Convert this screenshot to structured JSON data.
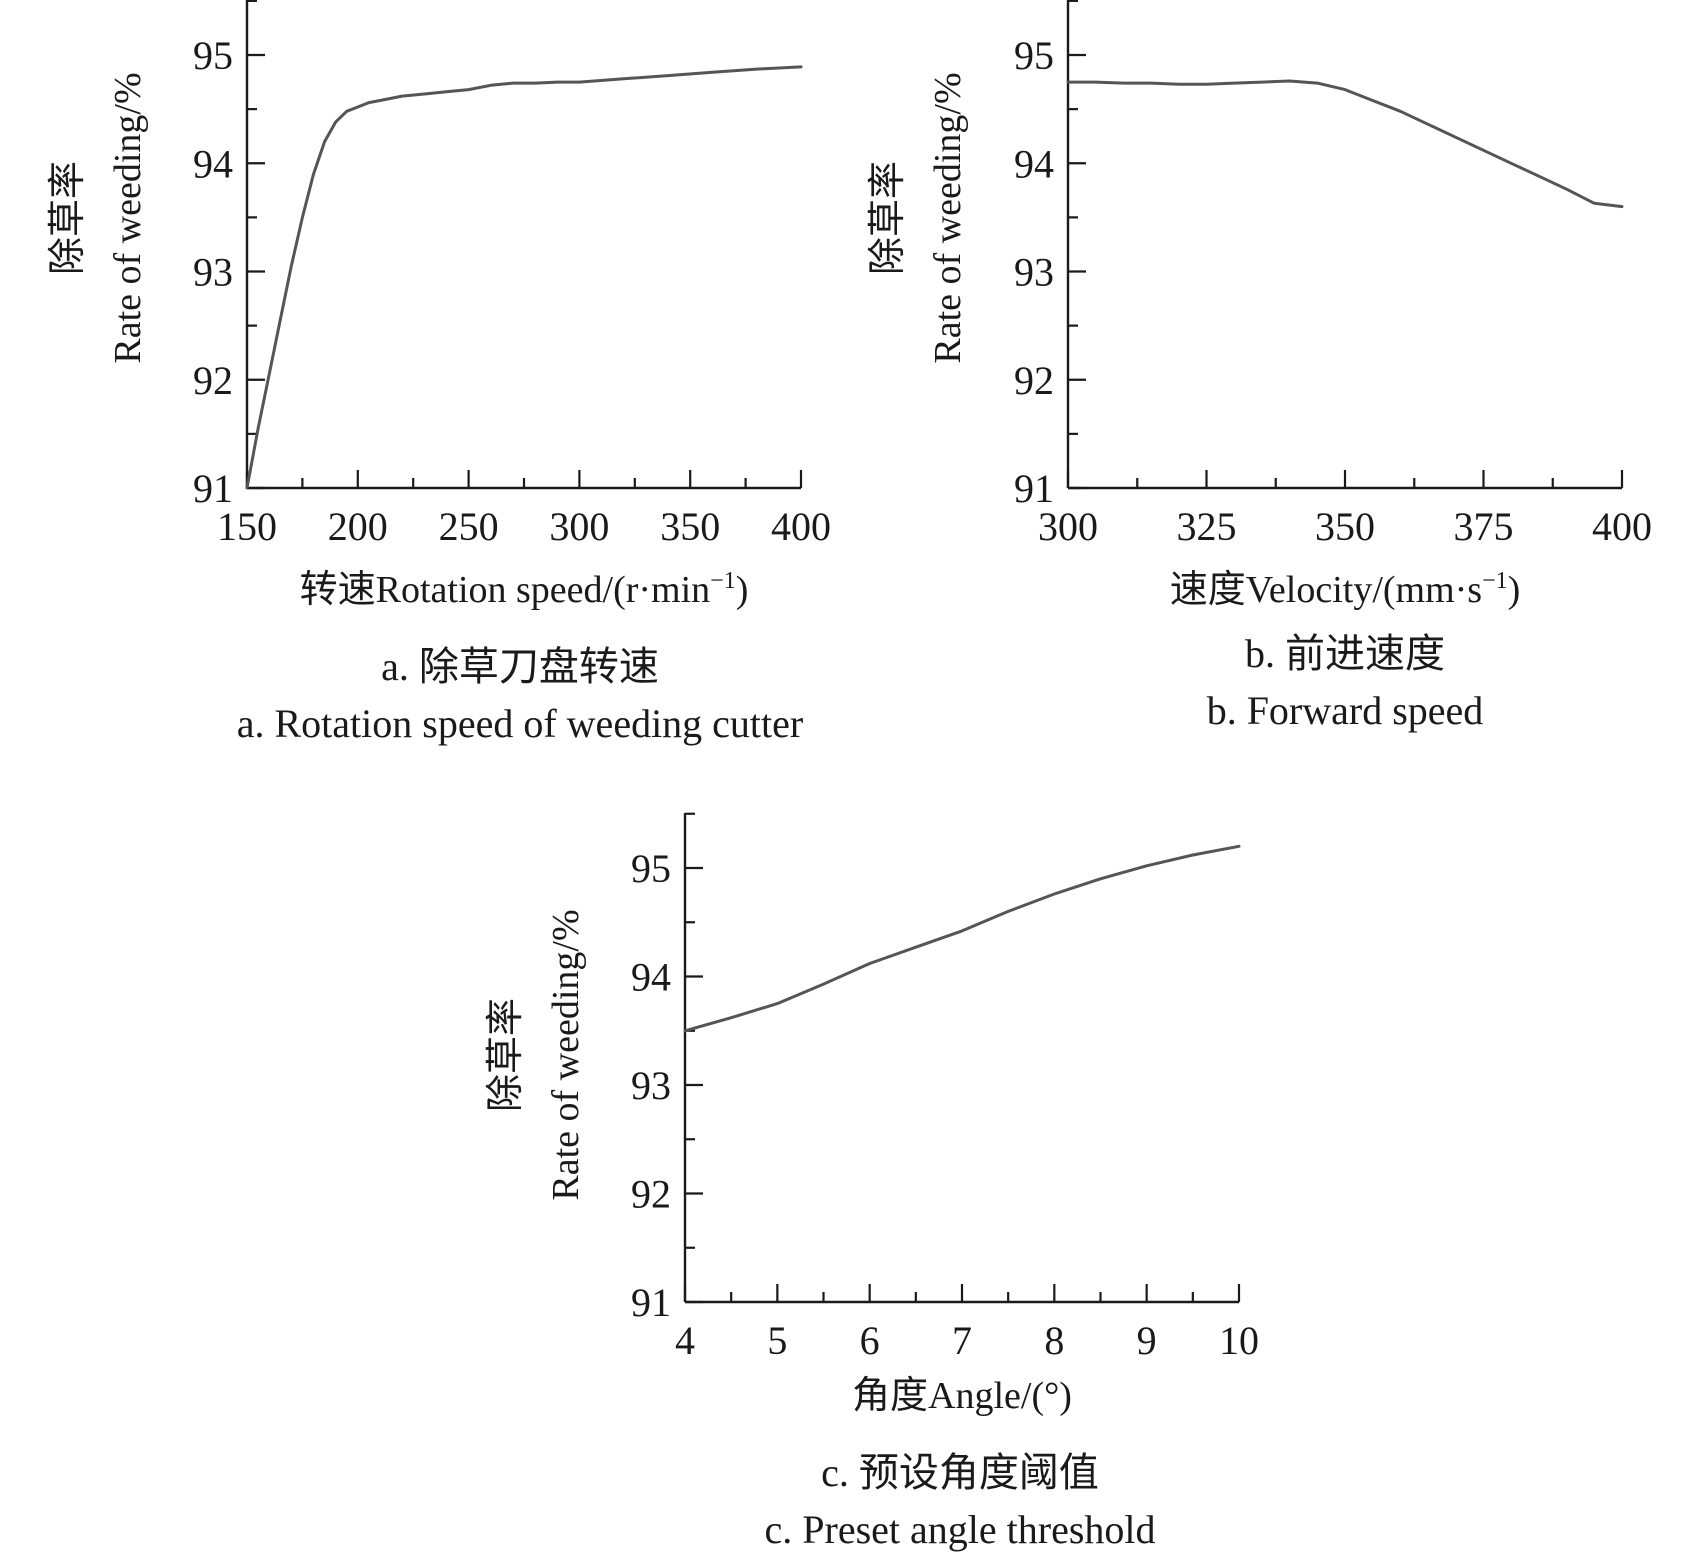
{
  "chart_data": [
    {
      "type": "line",
      "xlabel": "转速Rotation speed/(r·min",
      "xlabel_sup": "−1",
      "xlabel_end": ")",
      "ylabel_cn": "除草率",
      "ylabel": "Rate of weeding/%",
      "xlim": [
        150,
        400
      ],
      "ylim": [
        91,
        95.5
      ],
      "xticks": [
        150,
        200,
        250,
        300,
        350,
        400
      ],
      "yticks": [
        91,
        92,
        93,
        94,
        95
      ],
      "x": [
        150,
        155,
        160,
        165,
        170,
        175,
        180,
        185,
        190,
        195,
        200,
        205,
        210,
        220,
        230,
        240,
        250,
        260,
        270,
        280,
        290,
        300,
        320,
        340,
        360,
        380,
        400
      ],
      "y": [
        91.0,
        91.55,
        92.05,
        92.55,
        93.05,
        93.5,
        93.9,
        94.2,
        94.38,
        94.48,
        94.52,
        94.56,
        94.58,
        94.62,
        94.64,
        94.66,
        94.68,
        94.72,
        94.74,
        94.74,
        94.75,
        94.75,
        94.78,
        94.81,
        94.84,
        94.87,
        94.89
      ],
      "caption_cn": "a. 除草刀盘转速",
      "caption_en": "a. Rotation speed of weeding cutter"
    },
    {
      "type": "line",
      "xlabel": "速度Velocity/(mm·s",
      "xlabel_sup": "−1",
      "xlabel_end": ")",
      "ylabel_cn": "除草率",
      "ylabel": "Rate of weeding/%",
      "xlim": [
        300,
        400
      ],
      "ylim": [
        91,
        95.5
      ],
      "xticks": [
        300,
        325,
        350,
        375,
        400
      ],
      "yticks": [
        91,
        92,
        93,
        94,
        95
      ],
      "x": [
        300,
        305,
        310,
        315,
        320,
        325,
        330,
        335,
        340,
        345,
        350,
        355,
        360,
        365,
        370,
        375,
        380,
        385,
        390,
        395,
        400
      ],
      "y": [
        94.75,
        94.75,
        94.74,
        94.74,
        94.73,
        94.73,
        94.74,
        94.75,
        94.76,
        94.74,
        94.68,
        94.58,
        94.48,
        94.36,
        94.24,
        94.12,
        94.0,
        93.88,
        93.76,
        93.63,
        93.6
      ],
      "caption_cn": "b. 前进速度",
      "caption_en": "b. Forward speed"
    },
    {
      "type": "line",
      "xlabel": "角度Angle/(°)",
      "ylabel_cn": "除草率",
      "ylabel": "Rate of weeding/%",
      "xlim": [
        4,
        10
      ],
      "ylim": [
        91,
        95.5
      ],
      "xticks": [
        4,
        5,
        6,
        7,
        8,
        9,
        10
      ],
      "yticks": [
        91,
        92,
        93,
        94,
        95
      ],
      "x": [
        4,
        4.5,
        5,
        5.5,
        6,
        6.5,
        7,
        7.5,
        8,
        8.5,
        9,
        9.5,
        10
      ],
      "y": [
        93.5,
        93.62,
        93.75,
        93.93,
        94.12,
        94.27,
        94.42,
        94.6,
        94.76,
        94.9,
        95.02,
        95.12,
        95.2
      ],
      "caption_cn": "c. 预设角度阈值",
      "caption_en": "c. Preset angle threshold"
    }
  ]
}
